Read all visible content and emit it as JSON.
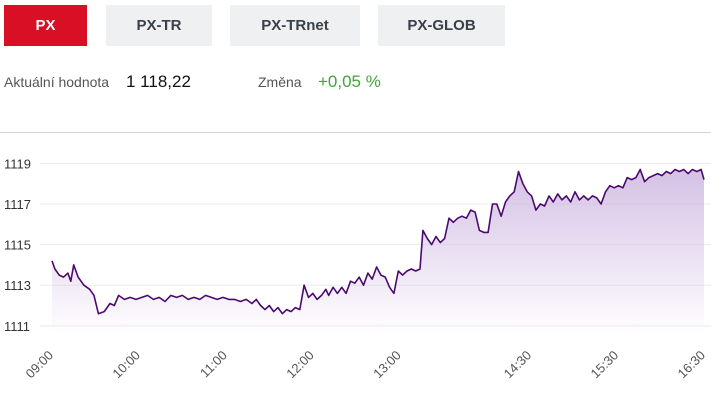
{
  "tabs": [
    {
      "label": "PX",
      "active": true
    },
    {
      "label": "PX-TR",
      "active": false
    },
    {
      "label": "PX-TRnet",
      "active": false
    },
    {
      "label": "PX-GLOB",
      "active": false
    }
  ],
  "stats": {
    "value_label": "Aktuální hodnota",
    "value": "1 118,22",
    "change_label": "Změna",
    "change": "+0,05 %"
  },
  "colors": {
    "accent": "#d80f25",
    "line": "#4b0a6e",
    "area": "#d9c9e6",
    "positive": "#3fa63a"
  },
  "chart_data": {
    "type": "area",
    "title": "",
    "xlabel": "",
    "ylabel": "",
    "ylim": [
      1110.5,
      1120.3
    ],
    "y_ticks": [
      1111,
      1113,
      1115,
      1117,
      1119
    ],
    "x_range": [
      "09:00",
      "16:30"
    ],
    "x_ticks": [
      "09:00",
      "10:00",
      "11:00",
      "12:00",
      "13:00",
      "14:30",
      "15:30",
      "16:30"
    ],
    "grid": true,
    "series": [
      {
        "name": "",
        "values": [
          [
            "09:00",
            1114.2
          ],
          [
            "09:02",
            1113.8
          ],
          [
            "09:05",
            1113.5
          ],
          [
            "09:08",
            1113.4
          ],
          [
            "09:11",
            1113.6
          ],
          [
            "09:13",
            1113.2
          ],
          [
            "09:15",
            1114.0
          ],
          [
            "09:18",
            1113.4
          ],
          [
            "09:22",
            1113.0
          ],
          [
            "09:26",
            1112.8
          ],
          [
            "09:29",
            1112.5
          ],
          [
            "09:32",
            1111.6
          ],
          [
            "09:36",
            1111.7
          ],
          [
            "09:40",
            1112.1
          ],
          [
            "09:43",
            1112.0
          ],
          [
            "09:46",
            1112.5
          ],
          [
            "09:50",
            1112.3
          ],
          [
            "09:54",
            1112.4
          ],
          [
            "09:58",
            1112.3
          ],
          [
            "10:02",
            1112.4
          ],
          [
            "10:06",
            1112.5
          ],
          [
            "10:10",
            1112.3
          ],
          [
            "10:14",
            1112.4
          ],
          [
            "10:18",
            1112.2
          ],
          [
            "10:22",
            1112.5
          ],
          [
            "10:26",
            1112.4
          ],
          [
            "10:30",
            1112.5
          ],
          [
            "10:34",
            1112.3
          ],
          [
            "10:38",
            1112.4
          ],
          [
            "10:42",
            1112.3
          ],
          [
            "10:46",
            1112.5
          ],
          [
            "10:50",
            1112.4
          ],
          [
            "10:54",
            1112.3
          ],
          [
            "10:58",
            1112.4
          ],
          [
            "11:02",
            1112.3
          ],
          [
            "11:06",
            1112.3
          ],
          [
            "11:10",
            1112.2
          ],
          [
            "11:14",
            1112.3
          ],
          [
            "11:18",
            1112.1
          ],
          [
            "11:21",
            1112.3
          ],
          [
            "11:24",
            1112.0
          ],
          [
            "11:27",
            1111.8
          ],
          [
            "11:30",
            1112.0
          ],
          [
            "11:33",
            1111.7
          ],
          [
            "11:36",
            1111.9
          ],
          [
            "11:39",
            1111.6
          ],
          [
            "11:42",
            1111.8
          ],
          [
            "11:45",
            1111.7
          ],
          [
            "11:48",
            1111.9
          ],
          [
            "11:51",
            1111.8
          ],
          [
            "11:54",
            1113.0
          ],
          [
            "11:57",
            1112.4
          ],
          [
            "12:00",
            1112.6
          ],
          [
            "12:03",
            1112.3
          ],
          [
            "12:06",
            1112.5
          ],
          [
            "12:09",
            1112.8
          ],
          [
            "12:11",
            1112.5
          ],
          [
            "12:14",
            1112.9
          ],
          [
            "12:17",
            1112.6
          ],
          [
            "12:20",
            1112.9
          ],
          [
            "12:23",
            1112.6
          ],
          [
            "12:26",
            1113.2
          ],
          [
            "12:29",
            1113.1
          ],
          [
            "12:32",
            1113.4
          ],
          [
            "12:35",
            1113.0
          ],
          [
            "12:38",
            1113.6
          ],
          [
            "12:41",
            1113.3
          ],
          [
            "12:44",
            1113.9
          ],
          [
            "12:47",
            1113.5
          ],
          [
            "12:50",
            1113.4
          ],
          [
            "12:53",
            1112.9
          ],
          [
            "12:56",
            1112.6
          ],
          [
            "12:59",
            1113.7
          ],
          [
            "13:02",
            1113.5
          ],
          [
            "13:05",
            1113.7
          ],
          [
            "13:08",
            1113.8
          ],
          [
            "13:11",
            1113.7
          ],
          [
            "13:14",
            1113.8
          ],
          [
            "13:16",
            1115.7
          ],
          [
            "13:19",
            1115.3
          ],
          [
            "13:22",
            1115.0
          ],
          [
            "13:25",
            1115.4
          ],
          [
            "13:28",
            1115.1
          ],
          [
            "13:31",
            1115.3
          ],
          [
            "13:34",
            1116.3
          ],
          [
            "13:37",
            1116.1
          ],
          [
            "13:40",
            1116.3
          ],
          [
            "13:43",
            1116.4
          ],
          [
            "13:46",
            1116.3
          ],
          [
            "13:49",
            1116.7
          ],
          [
            "13:52",
            1116.6
          ],
          [
            "13:55",
            1115.7
          ],
          [
            "13:58",
            1115.6
          ],
          [
            "14:01",
            1115.6
          ],
          [
            "14:04",
            1117.0
          ],
          [
            "14:07",
            1117.0
          ],
          [
            "14:10",
            1116.4
          ],
          [
            "14:13",
            1117.1
          ],
          [
            "14:16",
            1117.4
          ],
          [
            "14:19",
            1117.6
          ],
          [
            "14:22",
            1118.6
          ],
          [
            "14:25",
            1118.0
          ],
          [
            "14:28",
            1117.6
          ],
          [
            "14:31",
            1117.4
          ],
          [
            "14:34",
            1116.7
          ],
          [
            "14:37",
            1117.0
          ],
          [
            "14:40",
            1116.9
          ],
          [
            "14:43",
            1117.4
          ],
          [
            "14:46",
            1117.1
          ],
          [
            "14:49",
            1117.5
          ],
          [
            "14:52",
            1117.2
          ],
          [
            "14:55",
            1117.4
          ],
          [
            "14:58",
            1117.1
          ],
          [
            "15:01",
            1117.6
          ],
          [
            "15:04",
            1117.2
          ],
          [
            "15:07",
            1117.4
          ],
          [
            "15:10",
            1117.2
          ],
          [
            "15:13",
            1117.4
          ],
          [
            "15:16",
            1117.3
          ],
          [
            "15:19",
            1117.0
          ],
          [
            "15:22",
            1117.6
          ],
          [
            "15:25",
            1117.9
          ],
          [
            "15:28",
            1117.8
          ],
          [
            "15:31",
            1117.9
          ],
          [
            "15:34",
            1117.8
          ],
          [
            "15:37",
            1118.3
          ],
          [
            "15:40",
            1118.2
          ],
          [
            "15:43",
            1118.3
          ],
          [
            "15:46",
            1118.7
          ],
          [
            "15:49",
            1118.1
          ],
          [
            "15:52",
            1118.3
          ],
          [
            "15:55",
            1118.4
          ],
          [
            "15:58",
            1118.5
          ],
          [
            "16:01",
            1118.4
          ],
          [
            "16:04",
            1118.6
          ],
          [
            "16:07",
            1118.5
          ],
          [
            "16:10",
            1118.7
          ],
          [
            "16:13",
            1118.6
          ],
          [
            "16:16",
            1118.7
          ],
          [
            "16:19",
            1118.5
          ],
          [
            "16:22",
            1118.7
          ],
          [
            "16:25",
            1118.6
          ],
          [
            "16:28",
            1118.7
          ],
          [
            "16:30",
            1118.2
          ]
        ]
      }
    ]
  }
}
